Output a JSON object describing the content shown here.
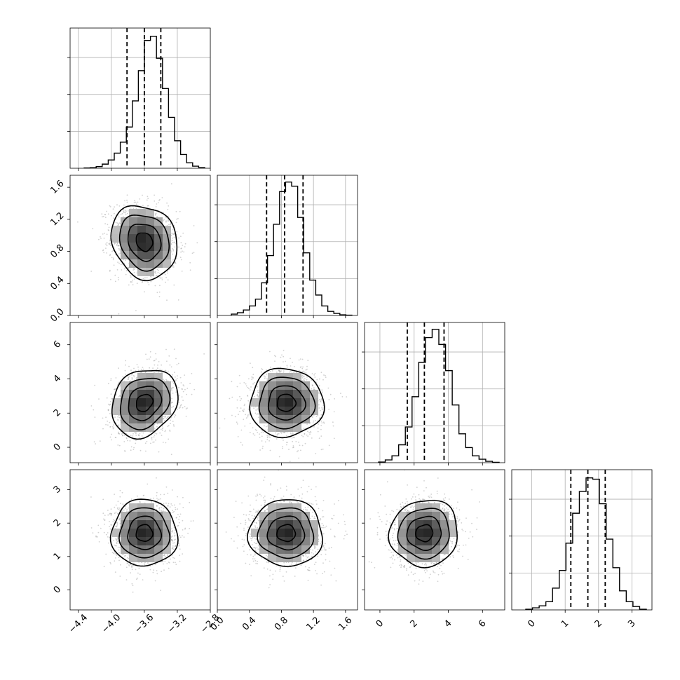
{
  "chart_data": {
    "type": "corner",
    "description_note": "",
    "parameters": [
      {
        "range": [
          -4.5,
          -2.8
        ],
        "ticks": [
          -4.4,
          -4.0,
          -3.6,
          -3.2,
          -2.8
        ],
        "tick_labels": [
          "−4.4",
          "−4.0",
          "−3.6",
          "−3.2",
          "−2.8"
        ],
        "quantiles": [
          -3.81,
          -3.6,
          -3.4
        ],
        "hist": [
          0.2,
          0.4,
          1.2,
          3,
          6,
          11,
          19,
          30,
          49,
          71,
          93,
          96,
          80,
          58,
          37,
          20,
          10,
          4,
          1.5,
          0.5
        ],
        "hist_max": 102
      },
      {
        "range": [
          0.0,
          1.75
        ],
        "ticks": [
          0.0,
          0.4,
          0.8,
          1.2,
          1.6
        ],
        "tick_labels": [
          "0.0",
          "0.4",
          "0.8",
          "1.2",
          "1.6"
        ],
        "quantiles": [
          0.615,
          0.84,
          1.07
        ],
        "hist": [
          1,
          2,
          4,
          7,
          12,
          24,
          44,
          67,
          91,
          98,
          95,
          72,
          46,
          26,
          15,
          7,
          3,
          1.5,
          0.5,
          0.2
        ],
        "hist_max": 103
      },
      {
        "range": [
          -0.9,
          7.3
        ],
        "ticks": [
          0,
          2,
          4,
          6
        ],
        "tick_labels": [
          "0",
          "2",
          "4",
          "6"
        ],
        "quantiles": [
          1.6,
          2.6,
          3.75
        ],
        "hist": [
          0.5,
          2,
          5,
          13,
          26,
          48,
          73,
          91,
          97,
          86,
          67,
          42,
          21,
          11,
          5,
          2.5,
          1,
          0.3
        ],
        "hist_max": 102
      },
      {
        "range": [
          -0.6,
          3.6
        ],
        "ticks": [
          0,
          1,
          2,
          3
        ],
        "tick_labels": [
          "0",
          "1",
          "2",
          "3"
        ],
        "quantiles": [
          1.17,
          1.68,
          2.2
        ],
        "hist": [
          0.5,
          1.5,
          3,
          6,
          16,
          29,
          49,
          71,
          87,
          97,
          96,
          78,
          52,
          31,
          14,
          6,
          2.5,
          0.5
        ],
        "hist_max": 103
      }
    ],
    "pairs": [
      {
        "row": 1,
        "col": 0,
        "cx": -3.6,
        "cy": 0.92,
        "sx": 0.2,
        "sy": 0.23,
        "rho": -0.15
      },
      {
        "row": 2,
        "col": 0,
        "cx": -3.6,
        "cy": 2.6,
        "sx": 0.2,
        "sy": 1.0,
        "rho": 0.2
      },
      {
        "row": 2,
        "col": 1,
        "cx": 0.86,
        "cy": 2.6,
        "sx": 0.23,
        "sy": 1.0,
        "rho": 0.0
      },
      {
        "row": 3,
        "col": 0,
        "cx": -3.6,
        "cy": 1.7,
        "sx": 0.2,
        "sy": 0.5,
        "rho": 0.0
      },
      {
        "row": 3,
        "col": 1,
        "cx": 0.86,
        "cy": 1.7,
        "sx": 0.23,
        "sy": 0.5,
        "rho": 0.0
      },
      {
        "row": 3,
        "col": 2,
        "cx": 2.6,
        "cy": 1.7,
        "sx": 1.0,
        "sy": 0.5,
        "rho": 0.05
      }
    ],
    "contour_levels_sigma": [
      0.5,
      1.0,
      1.5,
      2.0
    ],
    "grid": true
  }
}
